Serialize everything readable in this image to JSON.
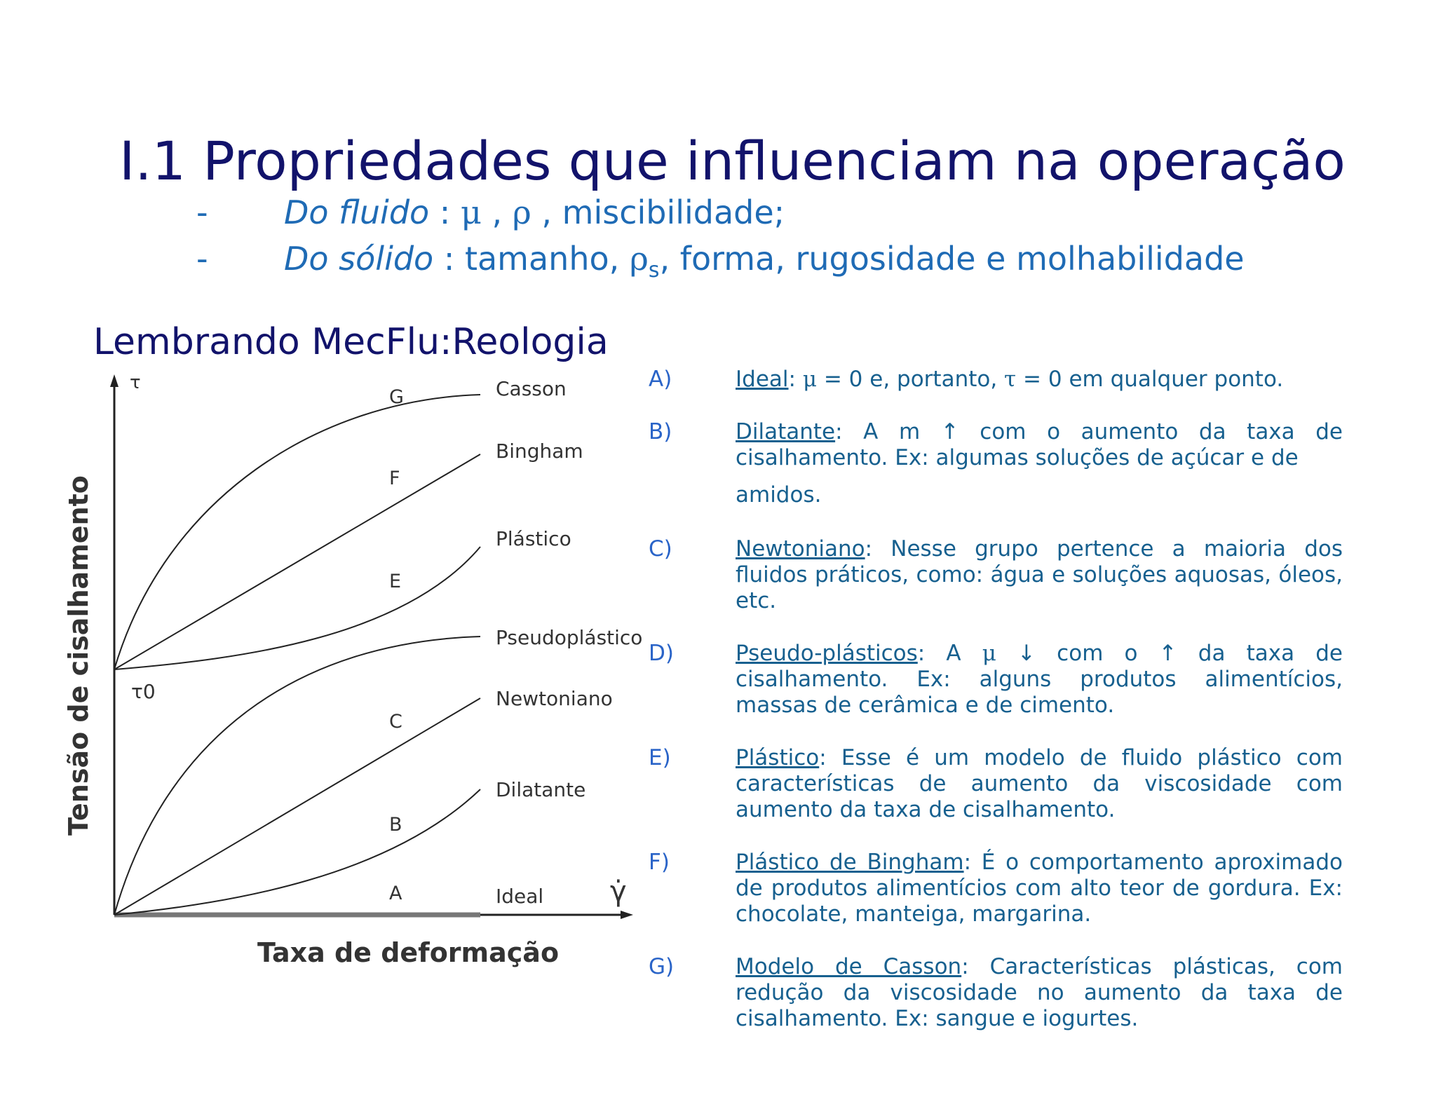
{
  "title": "I.1 Propriedades que influenciam na operação",
  "bullets": [
    {
      "dash": "-",
      "label": "Do fluido",
      "sep": " : ",
      "g1": "μ",
      "mid": " , ",
      "g2": "ρ",
      "rest": " , miscibilidade;"
    },
    {
      "dash": "-",
      "label": "Do sólido",
      "sep": " : tamanho, ",
      "g1": "ρ",
      "sub": "s",
      "rest": ", forma, rugosidade e molhabilidade"
    }
  ],
  "subtitle": "Lembrando MecFlu:Reologia",
  "chart": {
    "y_label": "Tensão de cisalhamento",
    "x_label": "Taxa de deformação",
    "tau": "τ",
    "tau0": "τ0",
    "gamma_dot": "γ̇",
    "curves": [
      {
        "letter": "G",
        "name": "Casson"
      },
      {
        "letter": "F",
        "name": "Bingham"
      },
      {
        "letter": "E",
        "name": "Plástico"
      },
      {
        "letter": "",
        "name": "Pseudoplástico"
      },
      {
        "letter": "C",
        "name": "Newtoniano"
      },
      {
        "letter": "B",
        "name": "Dilatante"
      },
      {
        "letter": "A",
        "name": "Ideal"
      }
    ]
  },
  "items": [
    {
      "letter": "A)",
      "term": "Ideal",
      "p1": ": ",
      "g1": "μ",
      "p2": " = 0 e, portanto, ",
      "g2": "τ",
      "p3": " = 0 em qualquer ponto."
    },
    {
      "letter": "B)",
      "term": "Dilatante",
      "p1": ": A m ↑ com o aumento da taxa de cisalhamento. Ex: algumas soluções de açúcar e de",
      "p2": "amidos."
    },
    {
      "letter": "C)",
      "term": "Newtoniano",
      "p1": ": Nesse grupo pertence a maioria dos fluidos práticos, como: água e soluções aquosas, óleos, etc."
    },
    {
      "letter": "D)",
      "term": "Pseudo-plásticos",
      "p1": ": A ",
      "g1": "μ",
      "p2": " ↓ com o ↑ da taxa de cisalhamento. Ex: alguns produtos alimentícios, massas de cerâmica e de cimento."
    },
    {
      "letter": "E)",
      "term": "Plástico",
      "p1": ": Esse é um modelo de fluido plástico com características de aumento da viscosidade com aumento da taxa de cisalhamento."
    },
    {
      "letter": "F)",
      "term": "Plástico de Bingham",
      "p1": ": É o comportamento aproximado de produtos alimentícios com alto teor de gordura. Ex: chocolate, manteiga, margarina."
    },
    {
      "letter": "G)",
      "term": "Modelo de Casson",
      "p1": ": Características plásticas, com redução da viscosidade no aumento da taxa de cisalhamento. Ex: sangue e iogurtes."
    }
  ]
}
